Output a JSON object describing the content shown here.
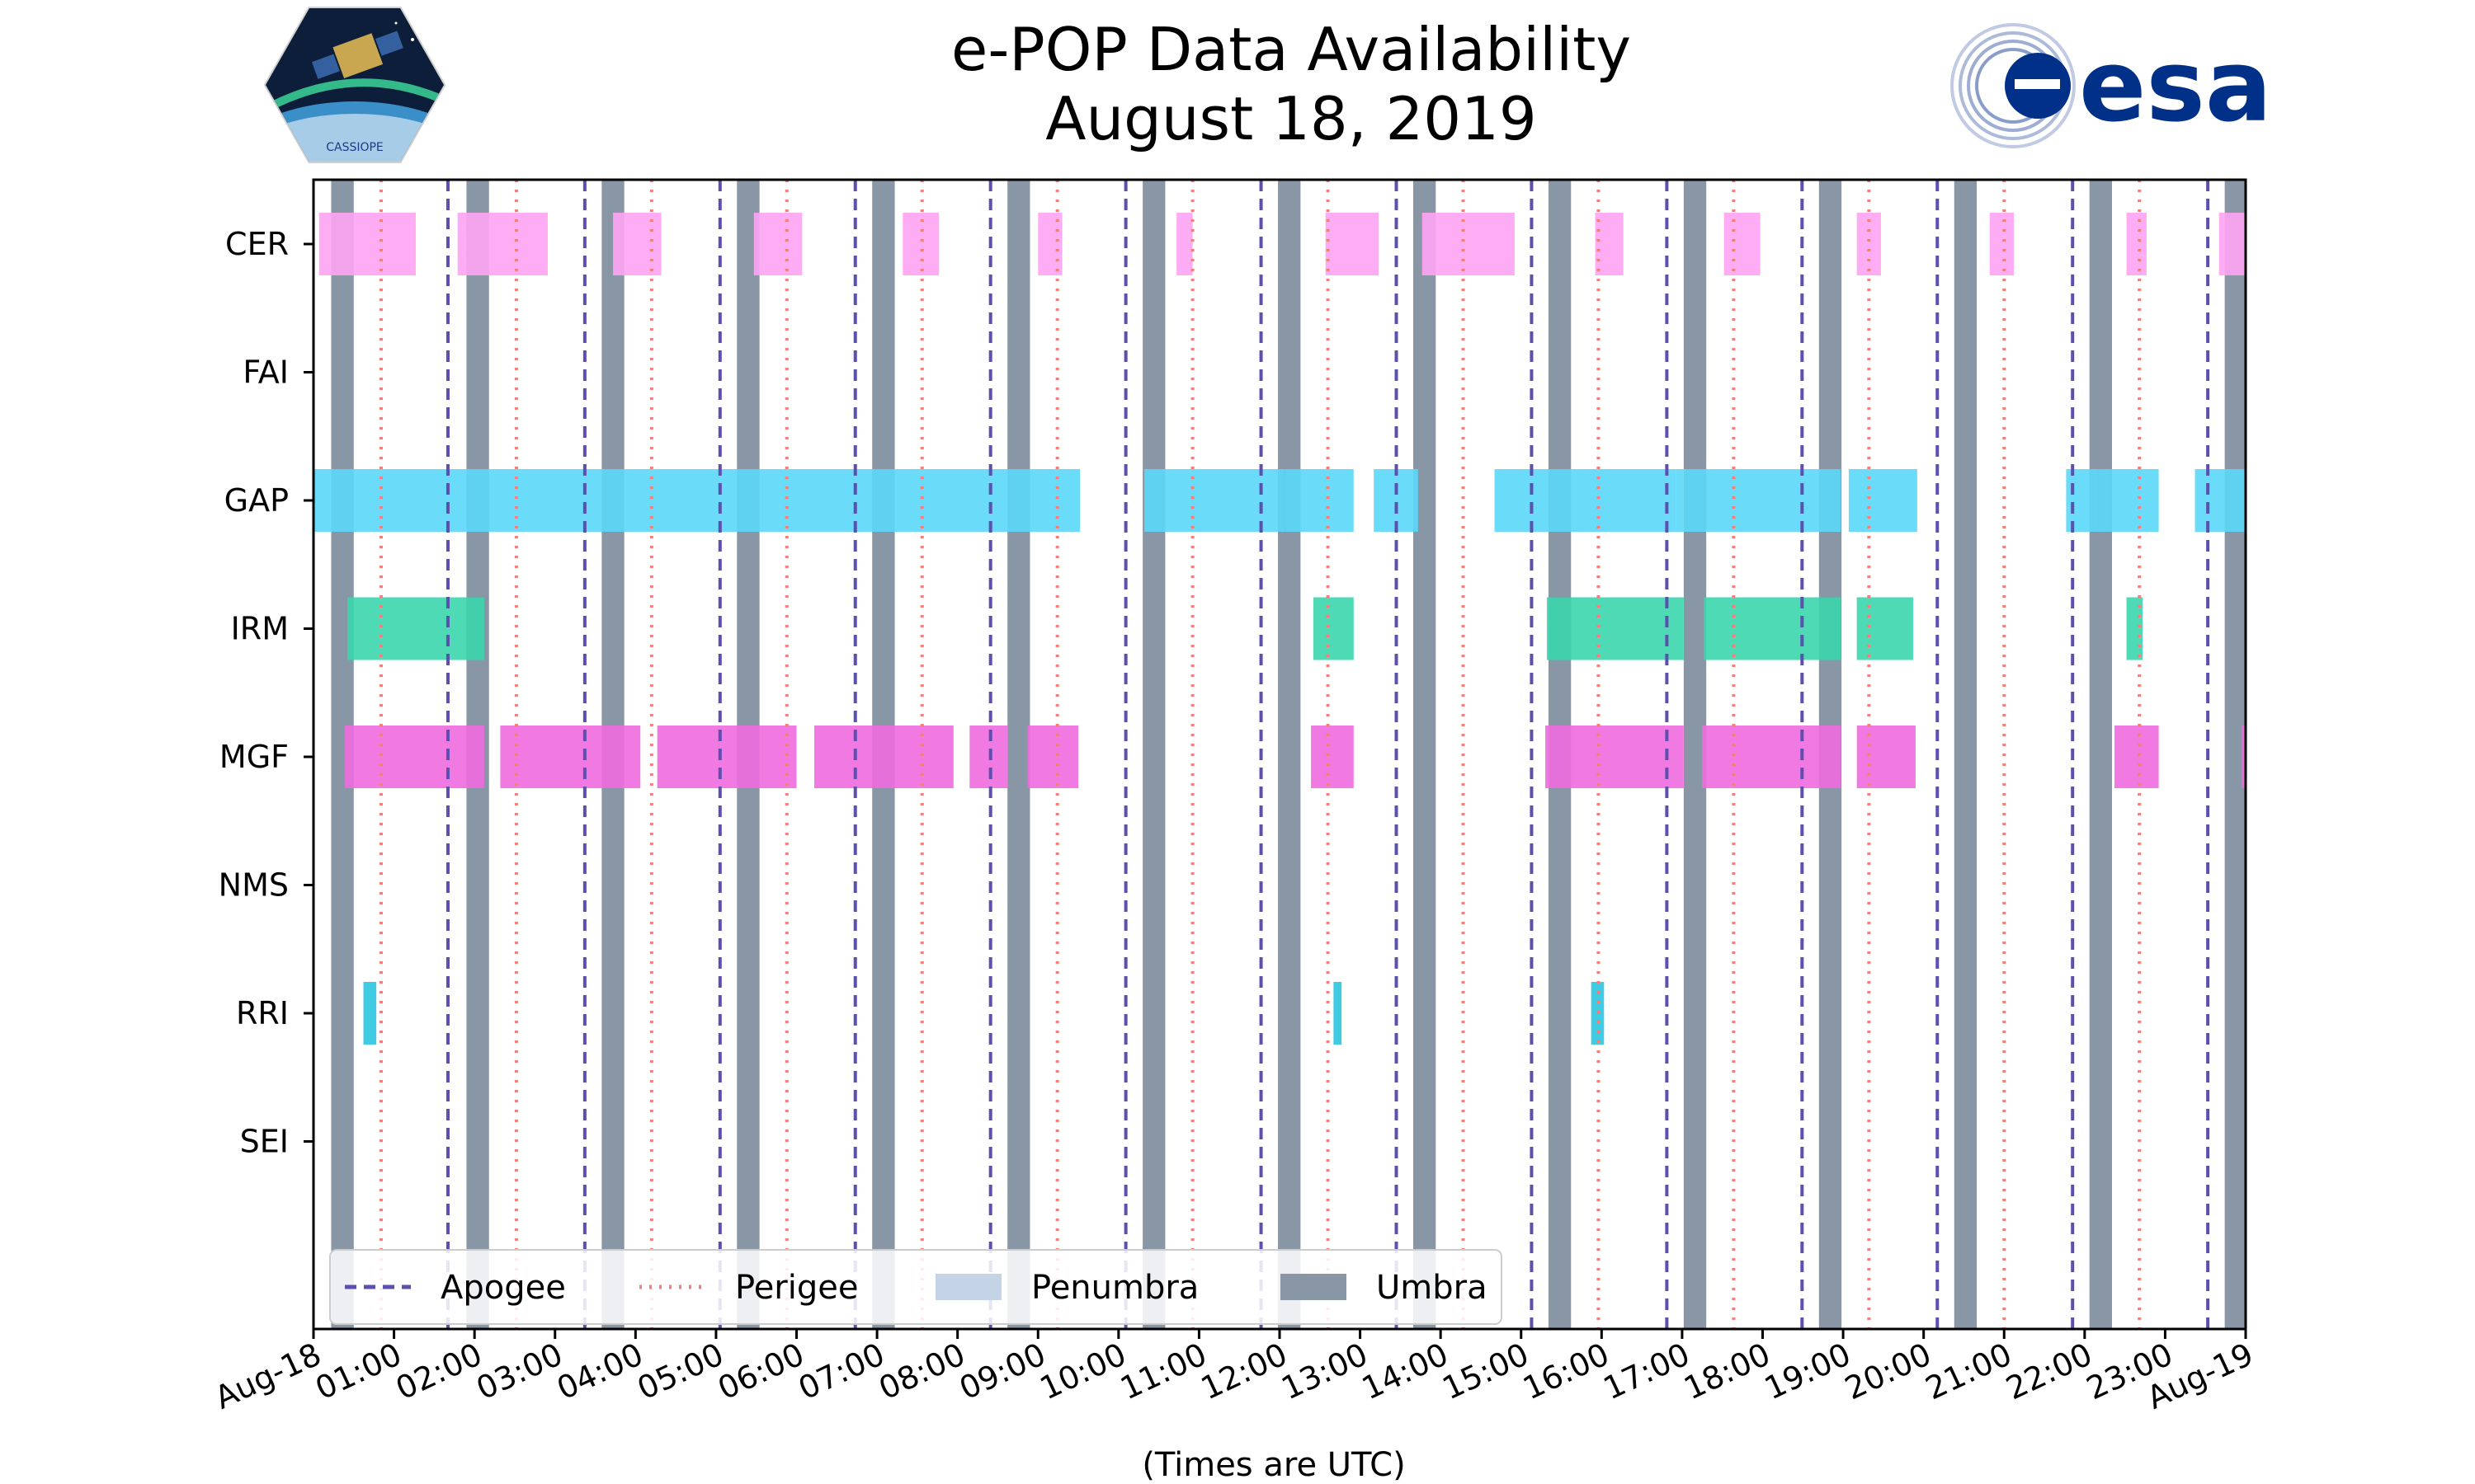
{
  "title": {
    "line1": "e-POP Data Availability",
    "line2": "August 18, 2019"
  },
  "logos": {
    "left": "cassiope-mission-logo",
    "left_caption": "CASSIOPE",
    "right": "esa-logo",
    "right_text": "esa"
  },
  "colors": {
    "apogee": "#5b4fb0",
    "perigee": "#f07f7f",
    "umbra": "#8896a6",
    "penumbra": "#c5d3e6",
    "CER": "#fea4f4",
    "FAI": "#888888",
    "GAP": "#5ad8f8",
    "IRM": "#3ad6ac",
    "MGF": "#ef6cdf",
    "NMS": "#888888",
    "RRI": "#2ac6e0",
    "SEI": "#888888",
    "esa_blue": "#003087"
  },
  "chart_data": {
    "type": "timeline",
    "title": "e-POP Data Availability August 18, 2019",
    "xlabel": "(Times are UTC)",
    "xlim_hours": [
      0,
      24
    ],
    "xtick_labels": [
      "Aug-18",
      "01:00",
      "02:00",
      "03:00",
      "04:00",
      "05:00",
      "06:00",
      "07:00",
      "08:00",
      "09:00",
      "10:00",
      "11:00",
      "12:00",
      "13:00",
      "14:00",
      "15:00",
      "16:00",
      "17:00",
      "18:00",
      "19:00",
      "20:00",
      "21:00",
      "22:00",
      "23:00",
      "Aug-19"
    ],
    "instruments": [
      "CER",
      "FAI",
      "GAP",
      "IRM",
      "MGF",
      "NMS",
      "RRI",
      "SEI"
    ],
    "availability_hours": {
      "CER": [
        [
          0.07,
          1.27
        ],
        [
          1.79,
          2.91
        ],
        [
          3.72,
          4.32
        ],
        [
          5.47,
          6.07
        ],
        [
          7.32,
          7.77
        ],
        [
          9.0,
          9.3
        ],
        [
          10.72,
          10.92
        ],
        [
          12.57,
          13.23
        ],
        [
          13.77,
          14.92
        ],
        [
          15.92,
          16.27
        ],
        [
          17.52,
          17.97
        ],
        [
          19.17,
          19.47
        ],
        [
          20.82,
          21.12
        ],
        [
          22.52,
          22.77
        ],
        [
          23.67,
          24.0
        ]
      ],
      "FAI": [],
      "GAP": [
        [
          0.0,
          9.52
        ],
        [
          10.32,
          12.07
        ],
        [
          12.07,
          12.6
        ],
        [
          12.6,
          12.92
        ],
        [
          13.17,
          13.72
        ],
        [
          14.67,
          16.92
        ],
        [
          16.92,
          17.02
        ],
        [
          17.02,
          18.97
        ],
        [
          19.07,
          19.92
        ],
        [
          21.77,
          22.17
        ],
        [
          22.17,
          22.32
        ],
        [
          22.32,
          22.92
        ],
        [
          23.37,
          24.0
        ]
      ],
      "IRM": [
        [
          0.42,
          2.12
        ],
        [
          12.42,
          12.92
        ],
        [
          15.32,
          17.02
        ],
        [
          17.27,
          18.97
        ],
        [
          19.17,
          19.87
        ],
        [
          22.52,
          22.72
        ]
      ],
      "MGF": [
        [
          0.39,
          2.12
        ],
        [
          2.32,
          4.06
        ],
        [
          4.27,
          6.0
        ],
        [
          6.22,
          7.95
        ],
        [
          8.15,
          8.62
        ],
        [
          8.87,
          9.5
        ],
        [
          12.39,
          12.92
        ],
        [
          15.3,
          17.02
        ],
        [
          17.25,
          18.97
        ],
        [
          19.17,
          19.9
        ],
        [
          22.37,
          22.92
        ],
        [
          23.95,
          24.0
        ]
      ],
      "NMS": [],
      "RRI": [
        [
          0.62,
          0.78
        ],
        [
          12.67,
          12.77
        ],
        [
          15.87,
          16.03
        ]
      ],
      "SEI": []
    },
    "umbra_hours": [
      [
        0.22,
        0.5
      ],
      [
        1.9,
        2.18
      ],
      [
        3.58,
        3.86
      ],
      [
        5.26,
        5.54
      ],
      [
        6.94,
        7.22
      ],
      [
        8.62,
        8.9
      ],
      [
        10.3,
        10.58
      ],
      [
        11.98,
        12.26
      ],
      [
        13.66,
        13.94
      ],
      [
        15.34,
        15.62
      ],
      [
        17.02,
        17.3
      ],
      [
        18.7,
        18.98
      ],
      [
        20.38,
        20.66
      ],
      [
        22.06,
        22.34
      ],
      [
        23.74,
        24.0
      ]
    ],
    "apogee_hours": [
      1.67,
      3.37,
      5.05,
      6.73,
      8.41,
      10.09,
      11.77,
      13.45,
      15.13,
      16.81,
      18.49,
      20.17,
      21.85,
      23.53
    ],
    "perigee_hours": [
      0.84,
      2.52,
      4.2,
      5.88,
      7.56,
      9.24,
      10.92,
      12.6,
      14.28,
      15.96,
      17.64,
      19.32,
      21.0,
      22.68
    ],
    "legend": {
      "position": "lower-left",
      "entries": [
        "Apogee",
        "Perigee",
        "Penumbra",
        "Umbra"
      ]
    }
  }
}
